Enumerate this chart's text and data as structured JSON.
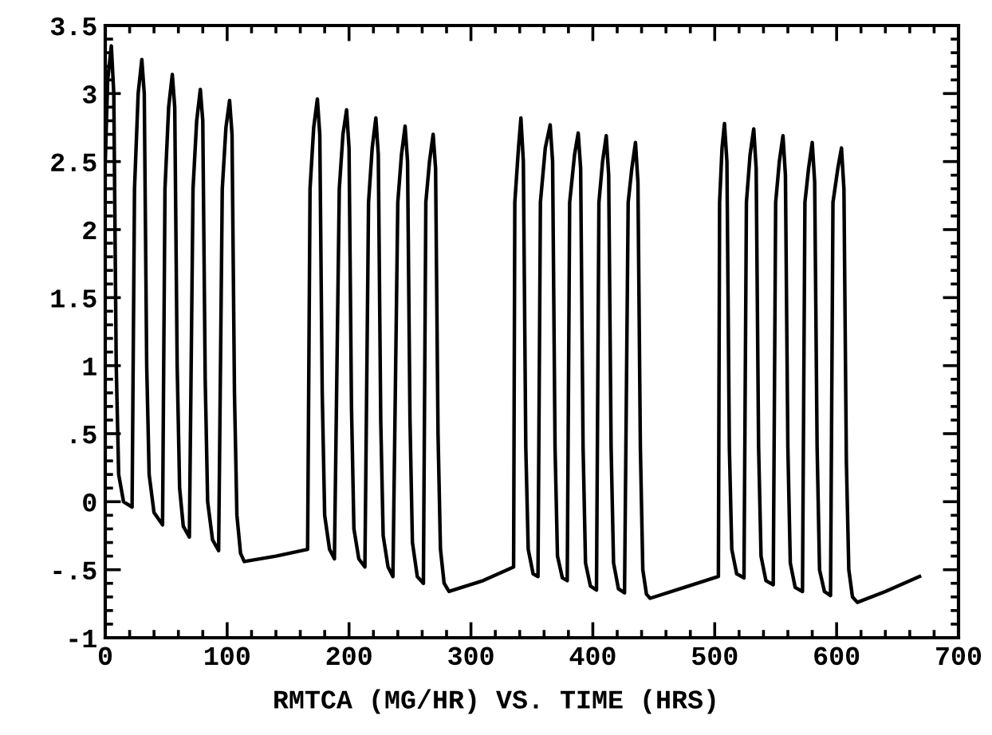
{
  "chart_data": {
    "type": "line",
    "title": "RMTCA (MG/HR) VS. TIME (HRS)",
    "xlim": [
      0,
      700
    ],
    "xticks": [
      0,
      100,
      200,
      300,
      400,
      500,
      600,
      700
    ],
    "ylim": [
      -1,
      3.5
    ],
    "yticks": [
      {
        "value": -1,
        "label": "-1"
      },
      {
        "value": -0.5,
        "label": "-.5"
      },
      0,
      {
        "value": 0.5,
        "label": ".5"
      },
      1,
      1.5,
      2,
      2.5,
      3,
      3.5
    ],
    "grid": false,
    "legend": false,
    "marker": "none",
    "line_style": "solid",
    "series": [
      {
        "color": "#000000",
        "x": [
          0,
          2,
          5,
          7,
          9,
          11,
          15,
          22,
          24,
          27,
          30,
          32,
          34,
          36,
          40,
          47,
          49,
          52,
          55,
          57,
          59,
          61,
          64,
          69,
          72,
          75,
          78,
          80,
          82,
          84,
          88,
          93,
          96,
          99,
          102,
          104,
          106,
          108,
          111,
          114,
          140,
          166,
          168,
          171,
          174,
          176,
          178,
          180,
          184,
          188,
          192,
          195,
          198,
          200,
          202,
          204,
          208,
          213,
          216,
          219,
          222,
          224,
          226,
          228,
          232,
          236,
          240,
          243,
          246,
          248,
          250,
          252,
          256,
          261,
          263,
          266,
          269,
          271,
          273,
          275,
          278,
          282,
          310,
          335,
          336,
          339,
          341,
          343,
          345,
          347,
          351,
          355,
          357,
          361,
          365,
          367,
          369,
          371,
          375,
          379,
          381,
          385,
          388,
          390,
          392,
          394,
          398,
          403,
          405,
          408,
          411,
          413,
          415,
          417,
          421,
          426,
          429,
          432,
          435,
          437,
          439,
          441,
          444,
          447,
          475,
          503,
          504,
          506,
          508,
          510,
          512,
          514,
          518,
          524,
          526,
          529,
          532,
          534,
          536,
          538,
          542,
          548,
          550,
          553,
          556,
          558,
          560,
          562,
          566,
          572,
          574,
          577,
          580,
          582,
          584,
          586,
          590,
          595,
          597,
          601,
          604,
          606,
          608,
          610,
          613,
          617,
          640,
          668
        ],
        "values": [
          2.5,
          3.1,
          3.35,
          3.0,
          1.0,
          0.2,
          0.0,
          -0.04,
          2.3,
          3.0,
          3.25,
          3.0,
          1.0,
          0.2,
          -0.08,
          -0.17,
          2.3,
          2.9,
          3.14,
          2.9,
          1.0,
          0.1,
          -0.18,
          -0.26,
          2.3,
          2.8,
          3.03,
          2.8,
          0.9,
          0.0,
          -0.28,
          -0.36,
          2.3,
          2.75,
          2.95,
          2.7,
          0.8,
          -0.1,
          -0.38,
          -0.44,
          -0.4,
          -0.35,
          2.3,
          2.75,
          2.96,
          2.7,
          0.8,
          -0.1,
          -0.35,
          -0.42,
          2.3,
          2.7,
          2.88,
          2.6,
          0.7,
          -0.2,
          -0.42,
          -0.48,
          2.2,
          2.6,
          2.82,
          2.55,
          0.6,
          -0.25,
          -0.48,
          -0.55,
          2.2,
          2.55,
          2.76,
          2.5,
          0.6,
          -0.3,
          -0.55,
          -0.6,
          2.2,
          2.5,
          2.7,
          2.45,
          0.5,
          -0.35,
          -0.6,
          -0.66,
          -0.58,
          -0.48,
          2.2,
          2.6,
          2.82,
          2.5,
          0.4,
          -0.35,
          -0.53,
          -0.55,
          2.2,
          2.6,
          2.77,
          2.5,
          0.4,
          -0.4,
          -0.56,
          -0.58,
          2.2,
          2.55,
          2.71,
          2.45,
          0.4,
          -0.45,
          -0.62,
          -0.65,
          2.2,
          2.5,
          2.69,
          2.4,
          0.4,
          -0.45,
          -0.64,
          -0.67,
          2.2,
          2.45,
          2.64,
          2.35,
          0.4,
          -0.5,
          -0.68,
          -0.71,
          -0.63,
          -0.55,
          2.2,
          2.6,
          2.78,
          2.5,
          0.4,
          -0.35,
          -0.53,
          -0.56,
          2.2,
          2.55,
          2.74,
          2.45,
          0.4,
          -0.4,
          -0.58,
          -0.61,
          2.2,
          2.5,
          2.69,
          2.4,
          0.4,
          -0.45,
          -0.63,
          -0.66,
          2.2,
          2.45,
          2.64,
          2.35,
          0.4,
          -0.5,
          -0.66,
          -0.69,
          2.2,
          2.45,
          2.6,
          2.3,
          0.3,
          -0.5,
          -0.7,
          -0.74,
          -0.66,
          -0.55
        ]
      }
    ]
  }
}
